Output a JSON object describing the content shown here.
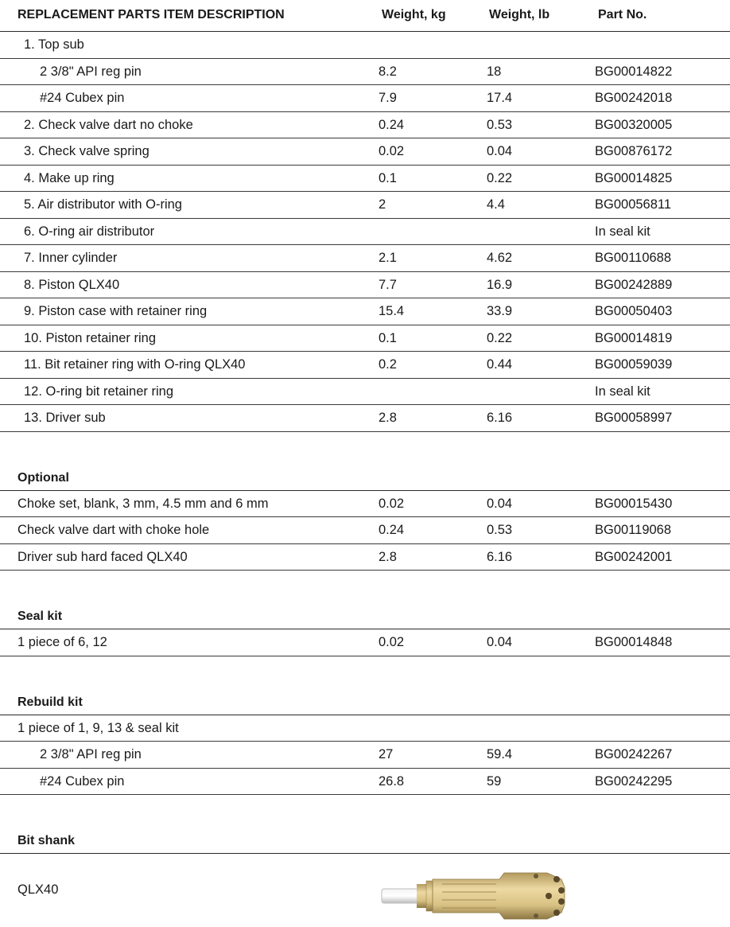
{
  "header": {
    "description": "REPLACEMENT PARTS ITEM DESCRIPTION",
    "weight_kg": "Weight, kg",
    "weight_lb": "Weight, lb",
    "part_no": "Part No."
  },
  "parts": [
    {
      "desc": "1. Top sub",
      "kg": "",
      "lb": "",
      "part": "",
      "indent": false
    },
    {
      "desc": "2 3/8\" API reg pin",
      "kg": "8.2",
      "lb": "18",
      "part": "BG00014822",
      "indent": true
    },
    {
      "desc": "#24 Cubex pin",
      "kg": "7.9",
      "lb": "17.4",
      "part": "BG00242018",
      "indent": true
    },
    {
      "desc": "2. Check valve dart no choke",
      "kg": "0.24",
      "lb": "0.53",
      "part": "BG00320005",
      "indent": false
    },
    {
      "desc": "3. Check valve spring",
      "kg": "0.02",
      "lb": "0.04",
      "part": "BG00876172",
      "indent": false
    },
    {
      "desc": "4. Make up ring",
      "kg": "0.1",
      "lb": "0.22",
      "part": "BG00014825",
      "indent": false
    },
    {
      "desc": "5. Air distributor with O-ring",
      "kg": "2",
      "lb": "4.4",
      "part": "BG00056811",
      "indent": false
    },
    {
      "desc": "6. O-ring air distributor",
      "kg": "",
      "lb": "",
      "part": "In seal kit",
      "indent": false
    },
    {
      "desc": "7. Inner cylinder",
      "kg": "2.1",
      "lb": "4.62",
      "part": "BG00110688",
      "indent": false
    },
    {
      "desc": "8. Piston QLX40",
      "kg": "7.7",
      "lb": "16.9",
      "part": "BG00242889",
      "indent": false
    },
    {
      "desc": "9. Piston case with retainer ring",
      "kg": "15.4",
      "lb": "33.9",
      "part": "BG00050403",
      "indent": false
    },
    {
      "desc": "10. Piston retainer ring",
      "kg": "0.1",
      "lb": "0.22",
      "part": "BG00014819",
      "indent": false
    },
    {
      "desc": "11. Bit retainer ring with O-ring QLX40",
      "kg": "0.2",
      "lb": "0.44",
      "part": "BG00059039",
      "indent": false
    },
    {
      "desc": "12. O-ring bit retainer ring",
      "kg": "",
      "lb": "",
      "part": "In seal kit",
      "indent": false
    },
    {
      "desc": "13. Driver sub",
      "kg": "2.8",
      "lb": "6.16",
      "part": "BG00058997",
      "indent": false
    }
  ],
  "optional": {
    "title": "Optional",
    "rows": [
      {
        "desc": "Choke set, blank, 3 mm, 4.5 mm and 6 mm",
        "kg": "0.02",
        "lb": "0.04",
        "part": "BG00015430"
      },
      {
        "desc": "Check valve dart with choke hole",
        "kg": "0.24",
        "lb": "0.53",
        "part": "BG00119068"
      },
      {
        "desc": "Driver sub hard faced QLX40",
        "kg": "2.8",
        "lb": "6.16",
        "part": "BG00242001"
      }
    ]
  },
  "seal_kit": {
    "title": "Seal kit",
    "rows": [
      {
        "desc": "1 piece of 6, 12",
        "kg": "0.02",
        "lb": "0.04",
        "part": "BG00014848"
      }
    ]
  },
  "rebuild_kit": {
    "title": "Rebuild kit",
    "rows": [
      {
        "desc": "1 piece of 1, 9, 13 & seal kit",
        "kg": "",
        "lb": "",
        "part": "",
        "indent": false
      },
      {
        "desc": "2 3/8\" API reg pin",
        "kg": "27",
        "lb": "59.4",
        "part": "BG00242267",
        "indent": true
      },
      {
        "desc": "#24 Cubex pin",
        "kg": "26.8",
        "lb": "59",
        "part": "BG00242295",
        "indent": true
      }
    ]
  },
  "bit_shank": {
    "title": "Bit shank",
    "label": "QLX40",
    "image_icon": "drill-bit-image"
  }
}
